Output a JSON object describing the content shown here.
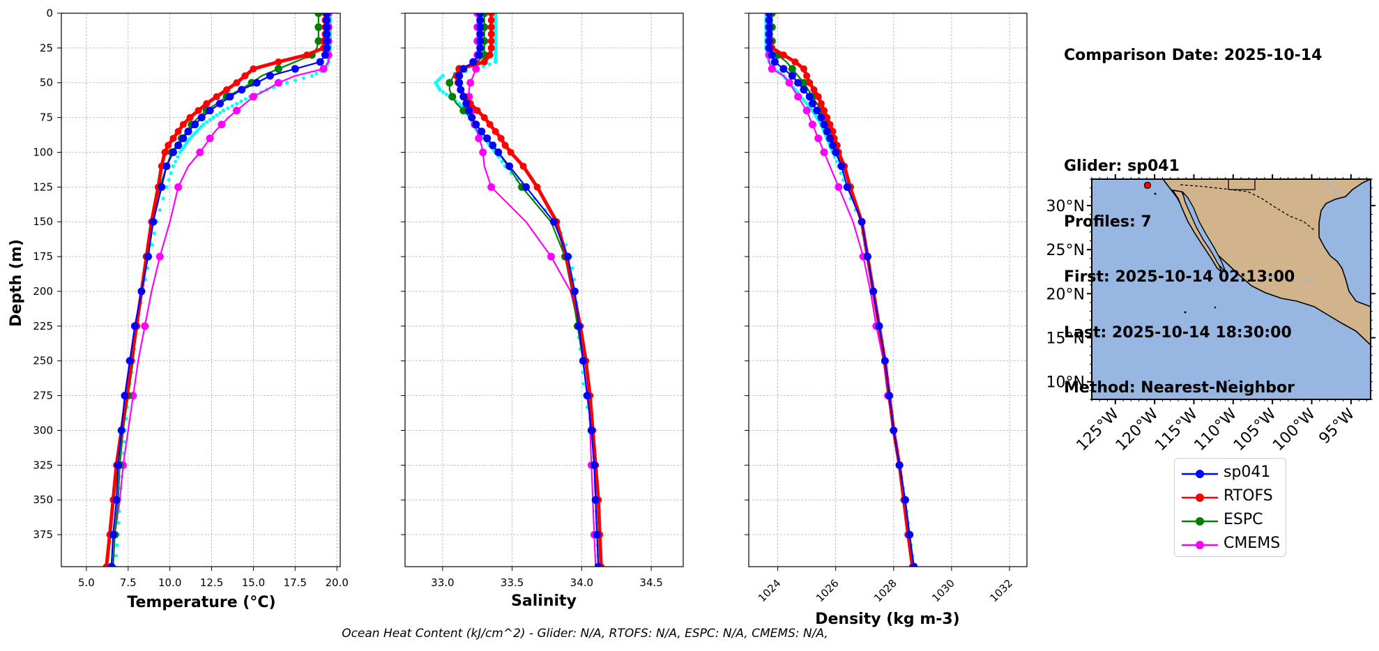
{
  "info": {
    "comparison_date": "Comparison Date: 2025-10-14",
    "glider": "Glider: sp041",
    "profiles": "Profiles: 7",
    "first": "First: 2025-10-14 02:13:00",
    "last": "Last: 2025-10-14 18:30:00",
    "method": "Method: Nearest-Neighbor"
  },
  "footer": "Ocean Heat Content (kJ/cm^2) - Glider: N/A,  RTOFS: N/A,  ESPC: N/A,  CMEMS: N/A,",
  "legend": [
    {
      "name": "sp041",
      "color": "#0000ff"
    },
    {
      "name": "RTOFS",
      "color": "#ff0000"
    },
    {
      "name": "ESPC",
      "color": "#008000"
    },
    {
      "name": "CMEMS",
      "color": "#ff00ff"
    }
  ],
  "chart_data": [
    {
      "type": "line",
      "xlabel": "Temperature (°C)",
      "ylabel": "Depth (m)",
      "xlim": [
        3.5,
        20.2
      ],
      "ylim": [
        398,
        0
      ],
      "xticks": [
        "5.0",
        "7.5",
        "10.0",
        "12.5",
        "15.0",
        "17.5",
        "20.0"
      ],
      "yticks": [
        "0",
        "25",
        "50",
        "75",
        "100",
        "125",
        "150",
        "175",
        "200",
        "225",
        "250",
        "275",
        "300",
        "325",
        "350",
        "375"
      ],
      "grid": true,
      "depths": [
        0,
        5,
        10,
        15,
        20,
        25,
        30,
        35,
        40,
        45,
        50,
        55,
        60,
        65,
        70,
        75,
        80,
        85,
        90,
        95,
        100,
        110,
        125,
        150,
        175,
        200,
        225,
        250,
        275,
        300,
        325,
        350,
        375,
        398
      ],
      "series": [
        {
          "name": "sp041",
          "color": "#0000ff",
          "values": [
            19.4,
            19.4,
            19.4,
            19.4,
            19.4,
            19.4,
            19.3,
            19.0,
            17.5,
            16.0,
            15.2,
            14.3,
            13.6,
            13.0,
            12.4,
            11.9,
            11.5,
            11.1,
            10.8,
            10.5,
            10.2,
            9.8,
            9.5,
            9.0,
            8.7,
            8.3,
            7.9,
            7.6,
            7.3,
            7.1,
            6.9,
            6.8,
            6.6,
            6.5
          ]
        },
        {
          "name": "RTOFS",
          "color": "#ff0000",
          "values": [
            19.3,
            19.3,
            19.3,
            19.3,
            19.2,
            19.2,
            18.2,
            16.5,
            15.0,
            14.5,
            14.0,
            13.4,
            12.8,
            12.2,
            11.7,
            11.2,
            10.8,
            10.5,
            10.2,
            9.9,
            9.7,
            9.5,
            9.3,
            8.9,
            8.6,
            8.3,
            8.0,
            7.7,
            7.4,
            7.1,
            6.8,
            6.6,
            6.4,
            6.2
          ]
        },
        {
          "name": "ESPC",
          "color": "#008000",
          "values": [
            18.9,
            18.9,
            18.9,
            18.9,
            18.9,
            18.8,
            18.5,
            17.5,
            16.5,
            15.5,
            14.9,
            14.2,
            13.4,
            12.8,
            12.2,
            11.7,
            11.3,
            11.0,
            10.7,
            10.4,
            10.1,
            9.8,
            9.4,
            8.9,
            8.6,
            8.3,
            8.0,
            7.8,
            7.5,
            7.2,
            7.0,
            6.9,
            6.7,
            6.6
          ]
        },
        {
          "name": "CMEMS",
          "color": "#ff00ff",
          "values": [
            19.5,
            19.5,
            19.5,
            19.5,
            19.5,
            19.5,
            19.5,
            19.5,
            19.2,
            17.5,
            16.5,
            15.8,
            15.0,
            14.5,
            14.0,
            13.5,
            13.1,
            12.7,
            12.4,
            12.1,
            11.8,
            11.1,
            10.5,
            10.0,
            9.4,
            8.9,
            8.5,
            8.1,
            7.8,
            7.5,
            7.2,
            7.0,
            6.7,
            6.6
          ]
        },
        {
          "name": "sp041 scatter",
          "color": "#00ffff",
          "values": [
            19.6,
            19.6,
            19.6,
            19.6,
            19.6,
            19.6,
            19.5,
            19.5,
            19.3,
            18.5,
            17.0,
            15.8,
            14.8,
            14.0,
            13.2,
            12.6,
            12.0,
            11.6,
            11.2,
            10.9,
            10.6,
            10.2,
            9.8,
            9.2,
            8.8,
            8.4,
            8.0,
            7.8,
            7.5,
            7.3,
            7.2,
            7.0,
            6.9,
            6.7
          ]
        }
      ]
    },
    {
      "type": "line",
      "xlabel": "Salinity",
      "xlim": [
        32.73,
        34.73
      ],
      "ylim": [
        398,
        0
      ],
      "xticks": [
        "33.0",
        "33.5",
        "34.0",
        "34.5"
      ],
      "grid": true,
      "depths": [
        0,
        5,
        10,
        15,
        20,
        25,
        30,
        35,
        40,
        45,
        50,
        55,
        60,
        65,
        70,
        75,
        80,
        85,
        90,
        95,
        100,
        110,
        125,
        150,
        175,
        200,
        225,
        250,
        275,
        300,
        325,
        350,
        375,
        398
      ],
      "series": [
        {
          "name": "sp041",
          "color": "#0000ff",
          "values": [
            33.27,
            33.27,
            33.27,
            33.27,
            33.27,
            33.27,
            33.26,
            33.22,
            33.15,
            33.12,
            33.12,
            33.13,
            33.15,
            33.17,
            33.19,
            33.21,
            33.24,
            33.28,
            33.32,
            33.36,
            33.4,
            33.48,
            33.6,
            33.8,
            33.9,
            33.95,
            33.98,
            34.01,
            34.04,
            34.07,
            34.09,
            34.1,
            34.11,
            34.12
          ]
        },
        {
          "name": "RTOFS",
          "color": "#ff0000",
          "values": [
            33.35,
            33.35,
            33.35,
            33.35,
            33.35,
            33.35,
            33.34,
            33.3,
            33.12,
            33.1,
            33.11,
            33.13,
            33.16,
            33.2,
            33.25,
            33.3,
            33.34,
            33.38,
            33.42,
            33.45,
            33.49,
            33.58,
            33.68,
            33.82,
            33.89,
            33.94,
            33.99,
            34.03,
            34.06,
            34.08,
            34.1,
            34.12,
            34.13,
            34.14
          ]
        },
        {
          "name": "ESPC",
          "color": "#008000",
          "values": [
            33.3,
            33.3,
            33.3,
            33.3,
            33.3,
            33.3,
            33.3,
            33.25,
            33.12,
            33.08,
            33.05,
            33.05,
            33.07,
            33.1,
            33.15,
            33.2,
            33.24,
            33.28,
            33.32,
            33.36,
            33.4,
            33.47,
            33.57,
            33.78,
            33.88,
            33.93,
            33.97,
            34.01,
            34.04,
            34.07,
            34.09,
            34.1,
            34.11,
            34.12
          ]
        },
        {
          "name": "CMEMS",
          "color": "#ff00ff",
          "values": [
            33.25,
            33.25,
            33.25,
            33.25,
            33.25,
            33.25,
            33.25,
            33.25,
            33.24,
            33.22,
            33.2,
            33.19,
            33.19,
            33.2,
            33.21,
            33.22,
            33.23,
            33.25,
            33.26,
            33.28,
            33.29,
            33.3,
            33.35,
            33.6,
            33.78,
            33.92,
            33.98,
            34.03,
            34.05,
            34.06,
            34.07,
            34.08,
            34.09,
            34.1
          ]
        },
        {
          "name": "sp041 scatter",
          "color": "#00ffff",
          "values": [
            33.38,
            33.38,
            33.38,
            33.38,
            33.38,
            33.38,
            33.38,
            33.38,
            33.25,
            33.0,
            32.95,
            32.98,
            33.05,
            33.12,
            33.16,
            33.2,
            33.22,
            33.25,
            33.3,
            33.34,
            33.38,
            33.45,
            33.58,
            33.82,
            33.92,
            33.96,
            33.97,
            34.0,
            34.02,
            34.08,
            34.1,
            34.1,
            34.11,
            34.12
          ]
        }
      ]
    },
    {
      "type": "line",
      "xlabel": "Density (kg m-3)",
      "xlim": [
        1023.0,
        1032.6
      ],
      "ylim": [
        398,
        0
      ],
      "xticks": [
        "1024",
        "1026",
        "1028",
        "1030",
        "1032"
      ],
      "grid": true,
      "depths": [
        0,
        5,
        10,
        15,
        20,
        25,
        30,
        35,
        40,
        45,
        50,
        55,
        60,
        65,
        70,
        75,
        80,
        85,
        90,
        95,
        100,
        110,
        125,
        150,
        175,
        200,
        225,
        250,
        275,
        300,
        325,
        350,
        375,
        398
      ],
      "series": [
        {
          "name": "sp041",
          "color": "#0000ff",
          "values": [
            1023.7,
            1023.7,
            1023.7,
            1023.7,
            1023.7,
            1023.7,
            1023.8,
            1023.9,
            1024.2,
            1024.5,
            1024.7,
            1024.9,
            1025.1,
            1025.2,
            1025.35,
            1025.5,
            1025.6,
            1025.7,
            1025.8,
            1025.9,
            1026.0,
            1026.2,
            1026.4,
            1026.9,
            1027.1,
            1027.3,
            1027.5,
            1027.7,
            1027.85,
            1028.0,
            1028.2,
            1028.4,
            1028.55,
            1028.7
          ]
        },
        {
          "name": "RTOFS",
          "color": "#ff0000",
          "values": [
            1023.7,
            1023.7,
            1023.7,
            1023.7,
            1023.75,
            1023.8,
            1024.2,
            1024.6,
            1024.9,
            1025.0,
            1025.1,
            1025.25,
            1025.4,
            1025.5,
            1025.6,
            1025.7,
            1025.8,
            1025.9,
            1025.95,
            1026.05,
            1026.1,
            1026.3,
            1026.5,
            1026.9,
            1027.1,
            1027.3,
            1027.5,
            1027.7,
            1027.85,
            1028.0,
            1028.2,
            1028.35,
            1028.5,
            1028.65
          ]
        },
        {
          "name": "ESPC",
          "color": "#008000",
          "values": [
            1023.8,
            1023.8,
            1023.8,
            1023.8,
            1023.8,
            1023.85,
            1024.0,
            1024.3,
            1024.5,
            1024.7,
            1024.9,
            1025.05,
            1025.2,
            1025.35,
            1025.5,
            1025.6,
            1025.7,
            1025.8,
            1025.9,
            1026.0,
            1026.05,
            1026.25,
            1026.5,
            1026.9,
            1027.1,
            1027.3,
            1027.5,
            1027.7,
            1027.85,
            1028.0,
            1028.2,
            1028.4,
            1028.55,
            1028.7
          ]
        },
        {
          "name": "CMEMS",
          "color": "#ff00ff",
          "values": [
            1023.7,
            1023.7,
            1023.7,
            1023.7,
            1023.7,
            1023.7,
            1023.7,
            1023.7,
            1023.8,
            1024.2,
            1024.4,
            1024.55,
            1024.7,
            1024.85,
            1025.0,
            1025.1,
            1025.2,
            1025.3,
            1025.4,
            1025.5,
            1025.6,
            1025.8,
            1026.1,
            1026.6,
            1026.95,
            1027.2,
            1027.4,
            1027.65,
            1027.8,
            1028.0,
            1028.2,
            1028.35,
            1028.5,
            1028.65
          ]
        },
        {
          "name": "sp041 scatter",
          "color": "#00ffff",
          "values": [
            1023.6,
            1023.6,
            1023.6,
            1023.6,
            1023.6,
            1023.6,
            1023.65,
            1023.7,
            1023.9,
            1024.2,
            1024.4,
            1024.6,
            1024.8,
            1025.0,
            1025.2,
            1025.35,
            1025.5,
            1025.6,
            1025.7,
            1025.8,
            1025.9,
            1026.1,
            1026.35,
            1026.85,
            1027.1,
            1027.3,
            1027.5,
            1027.7,
            1027.85,
            1028.0,
            1028.2,
            1028.4,
            1028.55,
            1028.7
          ]
        }
      ]
    },
    {
      "type": "map",
      "lat_ticks": [
        "30°N",
        "25°N",
        "20°N",
        "15°N",
        "10°N"
      ],
      "lon_ticks": [
        "125°W",
        "120°W",
        "115°W",
        "110°W",
        "105°W",
        "100°W",
        "95°W"
      ],
      "ocean_color": "#97b6e1",
      "land_color": "#d2b48c",
      "marker": {
        "lon": -120.9,
        "lat": 32.3,
        "color": "#ff0000"
      }
    }
  ]
}
